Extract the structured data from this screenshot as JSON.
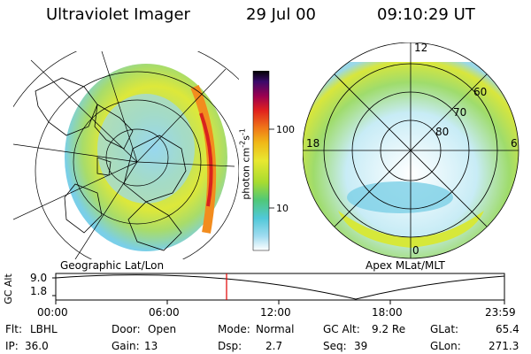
{
  "header": {
    "title": "Ultraviolet Imager",
    "date": "29 Jul 00",
    "time": "09:10:29 UT"
  },
  "colorbar": {
    "label": "photon cm",
    "sup1": "-2",
    "mid": "s",
    "sup2": "-1",
    "ticks": [
      "100",
      "10"
    ]
  },
  "left_panel": {
    "caption": "Geographic Lat/Lon"
  },
  "right_panel": {
    "caption": "Apex MLat/MLT",
    "mlt_labels": {
      "top": "12",
      "left": "18",
      "right": "6",
      "bottom": "0"
    },
    "lat_labels": [
      "60",
      "70",
      "80"
    ]
  },
  "timeline": {
    "axis_label": "GC Alt",
    "y_ticks": [
      "9.0",
      "1.8"
    ],
    "x_ticks": [
      "00:00",
      "06:00",
      "12:00",
      "18:00",
      "23:59"
    ]
  },
  "info": {
    "row1": [
      {
        "key": "Flt:",
        "value": "LBHL"
      },
      {
        "key": "Door:",
        "value": "Open"
      },
      {
        "key": "Mode:",
        "value": "Normal"
      },
      {
        "key": "GC Alt:",
        "value": "9.2 Re"
      },
      {
        "key": "GLat:",
        "value": "65.4"
      }
    ],
    "row2": [
      {
        "key": "IP:",
        "value": "36.0"
      },
      {
        "key": "Gain:",
        "value": "13"
      },
      {
        "key": "Dsp:",
        "value": "2.7"
      },
      {
        "key": "Seq:",
        "value": "39"
      },
      {
        "key": "GLon:",
        "value": "271.3"
      }
    ]
  },
  "colors": {
    "current_time_marker": "#e00000",
    "background": "#ffffff"
  }
}
